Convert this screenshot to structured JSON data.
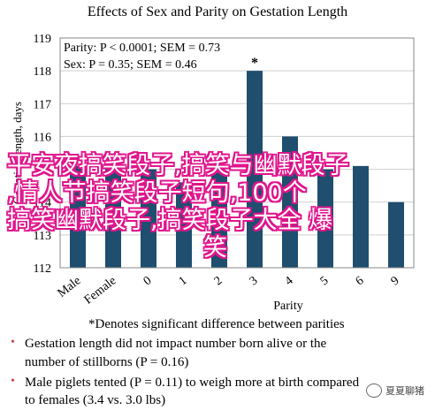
{
  "chart_data": {
    "type": "bar",
    "title": "Effects of Sex and Parity on Gestation Length",
    "xlabel": "Parity",
    "ylabel": "Gestation length, days",
    "categories": [
      "Male",
      "Female",
      "0",
      "1",
      "2",
      "3",
      "4",
      "5",
      "6",
      "9"
    ],
    "values": [
      115.1,
      115.1,
      115.0,
      114.6,
      114.9,
      118.0,
      116.0,
      115.0,
      115.1,
      114.0
    ],
    "ylim": [
      112,
      119
    ],
    "yticks": [
      112,
      113,
      114,
      115,
      116,
      117,
      118,
      119
    ],
    "grid": true,
    "bar_color": "#1f4e6e",
    "annotations": [
      {
        "label": "*",
        "category": "3"
      }
    ],
    "stats": [
      "Parity: P < 0.0001; SEM = 0.73",
      "Sex: P = 0.35; SEM = 0.46"
    ]
  },
  "footnotes": {
    "asterisk_note": "*Denotes significant difference between parities",
    "bullet1_line1": "Gestation length did not impact number born alive or the",
    "bullet1_line2": "number of stillborns (P = 0.16)",
    "bullet2_line1": "Male piglets tented (P = 0.11) to weigh more at birth compared",
    "bullet2_line2": "to females (3.4 vs. 3.0 lbs)"
  },
  "overlay_text": {
    "line1": "平安夜搞笑段子,搞笑与幽默段子",
    "line2": ",情人节搞笑段子短句,100个",
    "line3": "搞笑幽默段子,搞笑段子大全 爆",
    "line4": "笑"
  },
  "watermark": "夏夏聊猪",
  "colors": {
    "bar": "#1f4e6e",
    "bullet": "#c0504d",
    "overlay_outline": "#e0158c"
  }
}
